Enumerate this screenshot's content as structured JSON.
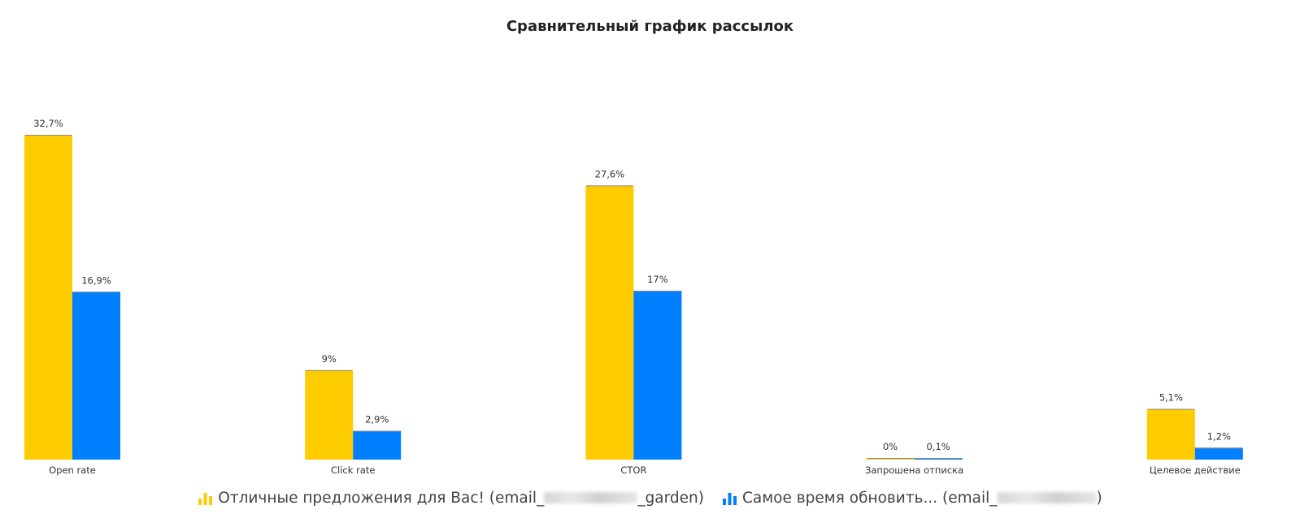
{
  "title": "Сравнительный график рассылок",
  "colors": {
    "series_1": "#ffcc00",
    "series_2": "#0080ff"
  },
  "legend": {
    "icon": "bar-chart-icon",
    "items": [
      {
        "prefix": "Отличные предложения для Вас! (email_",
        "suffix": "_garden)"
      },
      {
        "prefix": "Самое время обновить... (email_",
        "suffix": ")"
      }
    ]
  },
  "chart_data": {
    "type": "bar",
    "title": "Сравнительный график рассылок",
    "categories": [
      "Open rate",
      "Click rate",
      "CTOR",
      "Запрошена отписка",
      "Целевое действие"
    ],
    "series": [
      {
        "values": [
          32.7,
          9,
          27.6,
          0,
          5.1
        ],
        "labels": [
          "32,7%",
          "9%",
          "27,6%",
          "0%",
          "5,1%"
        ]
      },
      {
        "values": [
          16.9,
          2.9,
          17,
          0.1,
          1.2
        ],
        "labels": [
          "16,9%",
          "2,9%",
          "17%",
          "0,1%",
          "1,2%"
        ]
      }
    ],
    "xlabel": "",
    "ylabel": "",
    "ylim": [
      0,
      32.7
    ],
    "grid": false,
    "legend_position": "bottom"
  }
}
